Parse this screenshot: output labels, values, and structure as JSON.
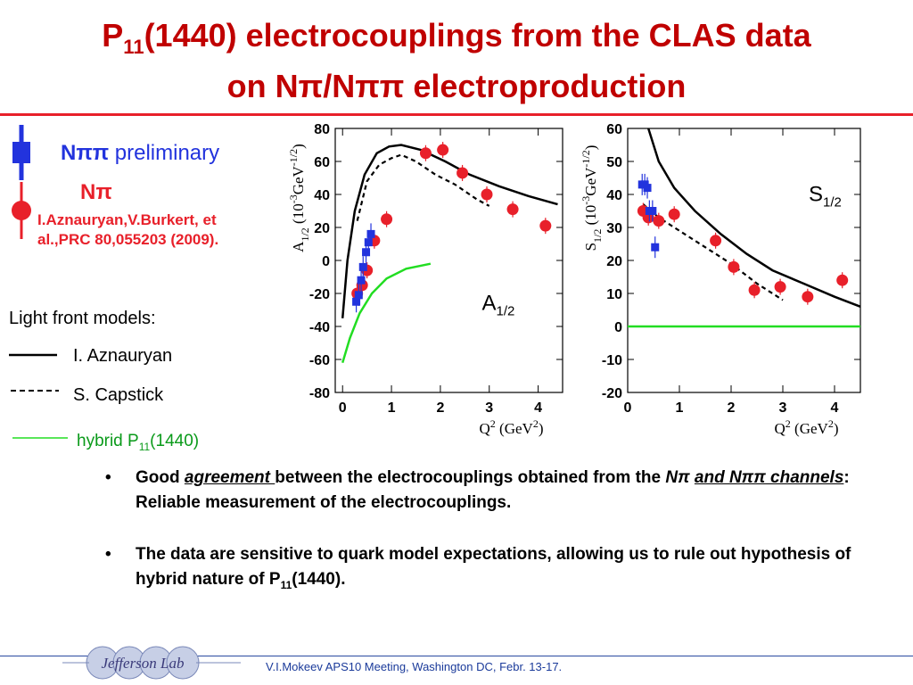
{
  "slide": {
    "title_line1_a": "P",
    "title_line1_sub": "11",
    "title_line1_b": "(1440) electrocouplings from the CLAS data",
    "title_line2": "on Nπ/Nππ electroproduction",
    "legend_npipi": "Nππ",
    "legend_preliminary": "preliminary",
    "legend_npi": "Nπ",
    "reference": "I.Aznauryan,V.Burkert, et al.,PRC 80,055203 (2009).",
    "light_front_title": "Light front models:",
    "model1": "I. Aznauryan",
    "model2": "S. Capstick",
    "hybrid_a": "hybrid P",
    "hybrid_sub": "11",
    "hybrid_b": "(1440)",
    "bullet1_a": "Good ",
    "bullet1_u": "agreement ",
    "bullet1_b": "between the electrocouplings obtained from the ",
    "bullet1_c": "Nπ",
    "bullet1_d": "and Nππ channels",
    "bullet1_e": ":  Reliable measurement of the electrocouplings.",
    "bullet2_a": "The data are sensitive to quark model expectations, allowing us to rule out hypothesis of  hybrid nature of P",
    "bullet2_sub": "11",
    "bullet2_b": "(1440).",
    "footer": "V.I.Mokeev   APS10 Meeting, Washington DC, Febr. 13-17.",
    "logo_text": "Jefferson Lab"
  },
  "colors": {
    "title": "#c00000",
    "npi_points": "#e8202a",
    "npipi_points": "#2233dd",
    "hybrid_curve": "#22dd22",
    "aznauryan_curve": "#000000",
    "capstick_curve": "#000000"
  },
  "chart_data": [
    {
      "type": "scatter",
      "panel_label": "A",
      "panel_label_sub": "1/2",
      "xlabel": "Q",
      "xlabel_sup": "2",
      "xlabel_unit": "(GeV",
      "xlabel_unit_sup": "2",
      "ylabel": "A",
      "ylabel_sub": "1/2",
      "ylabel_unit": "(10",
      "ylabel_unit_sup": "-3",
      "ylabel_unit2": "GeV",
      "ylabel_unit2_sup": "-1/2",
      "xlim": [
        -0.15,
        4.5
      ],
      "ylim": [
        -80,
        80
      ],
      "xticks": [
        0,
        1,
        2,
        3,
        4
      ],
      "yticks": [
        80,
        60,
        40,
        20,
        0,
        -20,
        -40,
        -60,
        -80
      ],
      "series": [
        {
          "name": "Nπ",
          "points": [
            [
              0.3,
              -20
            ],
            [
              0.4,
              -15
            ],
            [
              0.5,
              -6
            ],
            [
              0.65,
              12
            ],
            [
              0.9,
              25
            ],
            [
              1.7,
              65
            ],
            [
              2.05,
              67
            ],
            [
              2.45,
              53
            ],
            [
              2.95,
              40
            ],
            [
              3.48,
              31
            ],
            [
              4.15,
              21
            ]
          ]
        },
        {
          "name": "Nππ preliminary",
          "points": [
            [
              0.28,
              -25
            ],
            [
              0.33,
              -21
            ],
            [
              0.38,
              -12
            ],
            [
              0.42,
              -4
            ],
            [
              0.48,
              5
            ],
            [
              0.53,
              11
            ],
            [
              0.58,
              16
            ]
          ]
        },
        {
          "name": "I. Aznauryan",
          "curve": [
            [
              0,
              -35
            ],
            [
              0.1,
              0
            ],
            [
              0.25,
              30
            ],
            [
              0.45,
              52
            ],
            [
              0.7,
              65
            ],
            [
              0.95,
              69
            ],
            [
              1.2,
              70
            ],
            [
              1.6,
              67
            ],
            [
              2.1,
              60
            ],
            [
              2.6,
              52
            ],
            [
              3.2,
              45
            ],
            [
              3.8,
              39
            ],
            [
              4.4,
              34
            ]
          ]
        },
        {
          "name": "S. Capstick",
          "curve": [
            [
              0.3,
              24
            ],
            [
              0.5,
              48
            ],
            [
              0.75,
              58
            ],
            [
              1.0,
              62
            ],
            [
              1.2,
              64
            ],
            [
              1.5,
              60
            ],
            [
              1.9,
              52
            ],
            [
              2.3,
              46
            ],
            [
              2.75,
              37
            ],
            [
              3.0,
              33
            ]
          ]
        },
        {
          "name": "hybrid P11(1440)",
          "curve": [
            [
              0,
              -62
            ],
            [
              0.15,
              -47
            ],
            [
              0.35,
              -32
            ],
            [
              0.6,
              -20
            ],
            [
              0.9,
              -11
            ],
            [
              1.3,
              -5
            ],
            [
              1.8,
              -2
            ]
          ]
        }
      ]
    },
    {
      "type": "scatter",
      "panel_label": "S",
      "panel_label_sub": "1/2",
      "xlabel": "Q",
      "xlabel_sup": "2",
      "xlabel_unit": "(GeV",
      "xlabel_unit_sup": "2",
      "ylabel": "S",
      "ylabel_sub": "1/2",
      "ylabel_unit": "(10",
      "ylabel_unit_sup": "-3",
      "ylabel_unit2": "GeV",
      "ylabel_unit2_sup": "-1/2",
      "xlim": [
        0,
        4.5
      ],
      "ylim": [
        -20,
        60
      ],
      "xticks": [
        0,
        1,
        2,
        3,
        4
      ],
      "yticks": [
        60,
        50,
        40,
        30,
        20,
        10,
        0,
        -10,
        -20
      ],
      "series": [
        {
          "name": "Nπ",
          "points": [
            [
              0.3,
              35
            ],
            [
              0.4,
              33
            ],
            [
              0.6,
              32
            ],
            [
              0.9,
              34
            ],
            [
              1.7,
              26
            ],
            [
              2.05,
              18
            ],
            [
              2.45,
              11
            ],
            [
              2.95,
              12
            ],
            [
              3.48,
              9
            ],
            [
              4.15,
              14
            ]
          ]
        },
        {
          "name": "Nππ preliminary",
          "points": [
            [
              0.28,
              43
            ],
            [
              0.33,
              43
            ],
            [
              0.38,
              42
            ],
            [
              0.42,
              35
            ],
            [
              0.48,
              35
            ],
            [
              0.53,
              24
            ]
          ]
        },
        {
          "name": "I. Aznauryan",
          "curve": [
            [
              0.4,
              60
            ],
            [
              0.6,
              50
            ],
            [
              0.9,
              42
            ],
            [
              1.3,
              35
            ],
            [
              1.8,
              28
            ],
            [
              2.3,
              22
            ],
            [
              2.8,
              17
            ],
            [
              3.4,
              13
            ],
            [
              4.0,
              9
            ],
            [
              4.5,
              6
            ]
          ]
        },
        {
          "name": "S. Capstick",
          "curve": [
            [
              0.3,
              37
            ],
            [
              0.6,
              33
            ],
            [
              1.0,
              29
            ],
            [
              1.5,
              24
            ],
            [
              2.0,
              19
            ],
            [
              2.5,
              13
            ],
            [
              3.0,
              8
            ]
          ]
        },
        {
          "name": "hybrid P11(1440)",
          "curve": [
            [
              0,
              0
            ],
            [
              4.5,
              0
            ]
          ]
        }
      ]
    }
  ]
}
